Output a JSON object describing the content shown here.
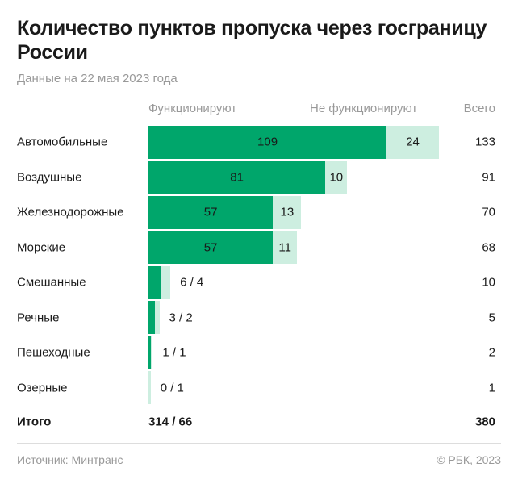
{
  "title": "Количество пунктов пропуска через госграницу России",
  "subtitle": "Данные на 22 мая 2023 года",
  "source": "Источник: Минтранс",
  "copyright": "© РБК, 2023",
  "colors": {
    "working": "#00a66b",
    "not_working": "#cdeee0"
  },
  "chart_data": {
    "type": "bar",
    "stacked": true,
    "orientation": "horizontal",
    "column_headers": {
      "working": "Функционируют",
      "not_working": "Не функционируют",
      "total": "Всего"
    },
    "categories": [
      "Автомобильные",
      "Воздушные",
      "Железнодорожные",
      "Морские",
      "Смешанные",
      "Речные",
      "Пешеходные",
      "Озерные"
    ],
    "series": [
      {
        "name": "Функционируют",
        "values": [
          109,
          81,
          57,
          57,
          6,
          3,
          1,
          0
        ]
      },
      {
        "name": "Не функционируют",
        "values": [
          24,
          10,
          13,
          11,
          4,
          2,
          1,
          1
        ]
      }
    ],
    "totals": [
      133,
      91,
      70,
      68,
      10,
      5,
      2,
      1
    ],
    "pair_labels": [
      "",
      "",
      "",
      "",
      "6 / 4",
      "3 / 2",
      "1 / 1",
      "0 / 1"
    ],
    "summary": {
      "label": "Итого",
      "pair": "314 / 66",
      "total": "380"
    }
  }
}
